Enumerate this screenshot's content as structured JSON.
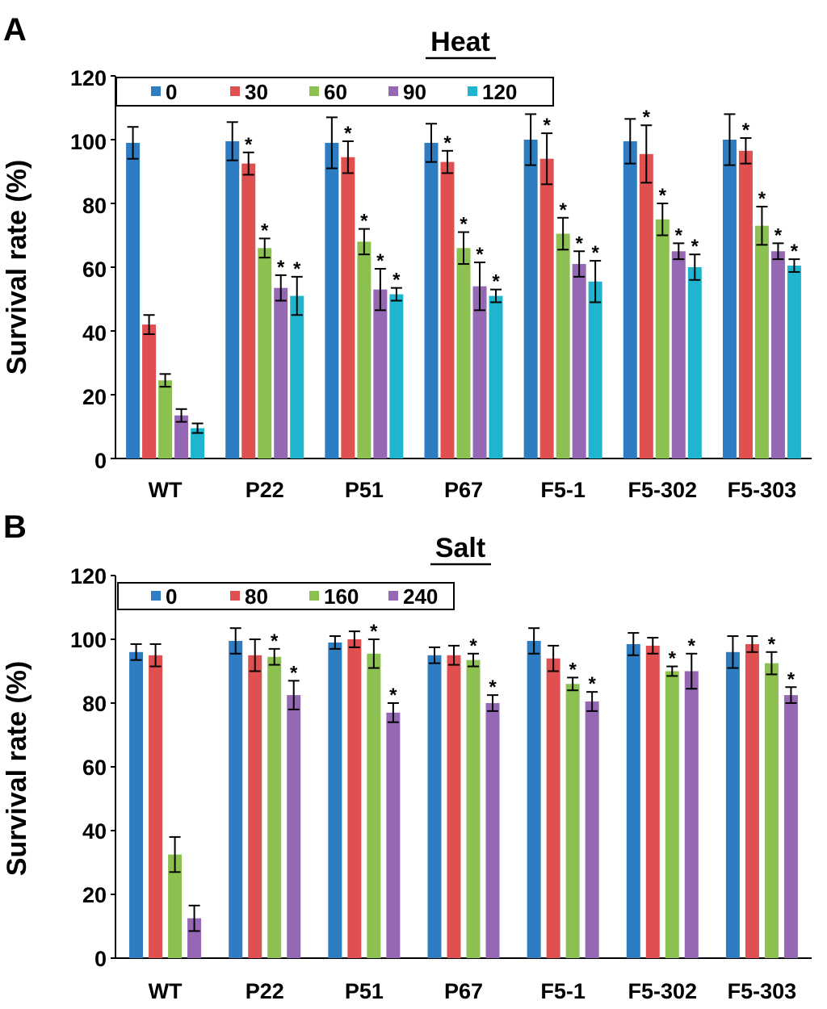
{
  "panels": [
    {
      "letter": "A",
      "title": "Heat",
      "ylabel": "Survival rate (%)",
      "yticks": [
        "0",
        "20",
        "40",
        "60",
        "80",
        "100",
        "120"
      ]
    },
    {
      "letter": "B",
      "title": "Salt",
      "ylabel": "Survival rate (%)",
      "yticks": [
        "0",
        "20",
        "40",
        "60",
        "80",
        "100",
        "120"
      ]
    }
  ],
  "chart_data": [
    {
      "type": "bar",
      "title": "Heat",
      "xlabel": "",
      "ylabel": "Survival rate (%)",
      "ylim": [
        0,
        120
      ],
      "grid": false,
      "legend_placement": "top",
      "categories": [
        "WT",
        "P22",
        "P51",
        "P67",
        "F5-1",
        "F5-302",
        "F5-303"
      ],
      "series": [
        {
          "name": "0",
          "color": "#2e7cc2",
          "values": [
            99,
            99.5,
            99,
            99,
            100,
            99.5,
            100
          ],
          "errors": [
            5,
            6,
            8,
            6,
            8,
            7,
            8
          ],
          "significant": [
            false,
            false,
            false,
            false,
            false,
            false,
            false
          ]
        },
        {
          "name": "30",
          "color": "#e05050",
          "values": [
            42,
            92.5,
            94.5,
            93,
            94,
            95.5,
            96.5
          ],
          "errors": [
            3,
            3.5,
            5,
            3.5,
            8,
            9,
            4
          ],
          "significant": [
            false,
            true,
            true,
            true,
            true,
            true,
            true
          ]
        },
        {
          "name": "60",
          "color": "#8cc152",
          "values": [
            24.5,
            66,
            68,
            66,
            70.5,
            75,
            73
          ],
          "errors": [
            2,
            3,
            4,
            5,
            5,
            5,
            6
          ],
          "significant": [
            false,
            true,
            true,
            true,
            true,
            true,
            true
          ]
        },
        {
          "name": "90",
          "color": "#9468b2",
          "values": [
            13.5,
            53.5,
            53,
            54,
            61,
            65,
            65
          ],
          "errors": [
            2,
            4,
            6.5,
            7.5,
            4,
            2.5,
            2.5
          ],
          "significant": [
            false,
            true,
            true,
            true,
            true,
            true,
            true
          ]
        },
        {
          "name": "120",
          "color": "#1fb5cf",
          "values": [
            9.5,
            51,
            51.5,
            51,
            55.5,
            60,
            60.5
          ],
          "errors": [
            1.5,
            6,
            2,
            2,
            6.5,
            4,
            2
          ],
          "significant": [
            false,
            true,
            true,
            true,
            true,
            true,
            true
          ]
        }
      ]
    },
    {
      "type": "bar",
      "title": "Salt",
      "xlabel": "",
      "ylabel": "Survival rate (%)",
      "ylim": [
        0,
        120
      ],
      "grid": false,
      "legend_placement": "top",
      "categories": [
        "WT",
        "P22",
        "P51",
        "P67",
        "F5-1",
        "F5-302",
        "F5-303"
      ],
      "series": [
        {
          "name": "0",
          "color": "#2e7cc2",
          "values": [
            96,
            99.5,
            99,
            95,
            99.5,
            98.5,
            96
          ],
          "errors": [
            2.5,
            4,
            2,
            2.5,
            4,
            3.5,
            5
          ],
          "significant": [
            false,
            false,
            false,
            false,
            false,
            false,
            false
          ]
        },
        {
          "name": "80",
          "color": "#e05050",
          "values": [
            95,
            95,
            100,
            95,
            94,
            98,
            98.5
          ],
          "errors": [
            3.5,
            5,
            2.5,
            3,
            4,
            2.5,
            2.5
          ],
          "significant": [
            false,
            false,
            false,
            false,
            false,
            false,
            false
          ]
        },
        {
          "name": "160",
          "color": "#8cc152",
          "values": [
            32.5,
            94.5,
            95.5,
            93.5,
            86,
            90,
            92.5
          ],
          "errors": [
            5.5,
            2.5,
            4.5,
            2,
            2,
            1.5,
            3.5
          ],
          "significant": [
            false,
            true,
            true,
            true,
            true,
            true,
            true
          ]
        },
        {
          "name": "240",
          "color": "#9468b2",
          "values": [
            12.5,
            82.5,
            77,
            80,
            80.5,
            90,
            82.5
          ],
          "errors": [
            4,
            4.5,
            3,
            2.5,
            3,
            5.5,
            2.5
          ],
          "significant": [
            false,
            true,
            true,
            true,
            true,
            true,
            true
          ]
        }
      ]
    }
  ]
}
